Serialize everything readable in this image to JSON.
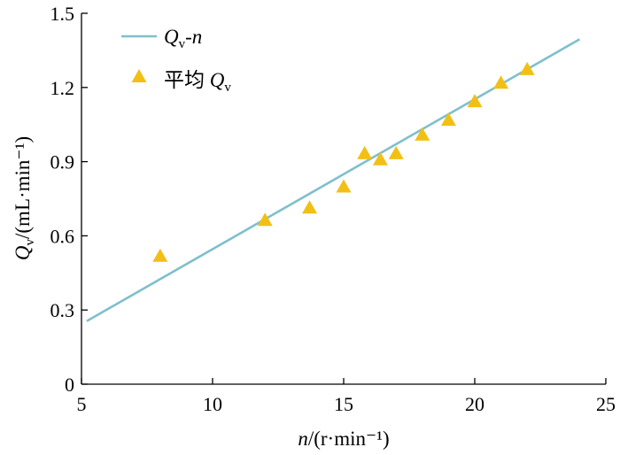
{
  "chart_data": {
    "type": "scatter",
    "xlabel": {
      "symbol": "n",
      "unit": "/(r·min⁻¹)"
    },
    "ylabel": {
      "symbol": "Q",
      "sub": "v",
      "unit": "/(mL·min⁻¹)"
    },
    "xlim": [
      5,
      25
    ],
    "ylim": [
      0,
      1.5
    ],
    "x_ticks": [
      "5",
      "10",
      "15",
      "20",
      "25"
    ],
    "y_ticks": [
      "0",
      "0.3",
      "0.6",
      "0.9",
      "1.2",
      "1.5"
    ],
    "grid": false,
    "legend_position": "top-left",
    "series": [
      {
        "name": {
          "q": "Q",
          "sub": "v",
          "rest": "-",
          "n": "n"
        },
        "kind": "line",
        "color": "#7fbfcc",
        "x": [
          5.2,
          24.0
        ],
        "y": [
          0.255,
          1.395
        ]
      },
      {
        "name": {
          "prefix": "平均 ",
          "q": "Q",
          "sub": "v"
        },
        "kind": "marker",
        "marker": "triangle",
        "color": "#f2c015",
        "x": [
          8.0,
          12.0,
          13.7,
          15.0,
          15.8,
          16.4,
          17.0,
          18.0,
          19.0,
          20.0,
          21.0,
          22.0
        ],
        "y": [
          0.52,
          0.665,
          0.715,
          0.8,
          0.935,
          0.91,
          0.935,
          1.01,
          1.07,
          1.145,
          1.22,
          1.275
        ]
      }
    ]
  }
}
